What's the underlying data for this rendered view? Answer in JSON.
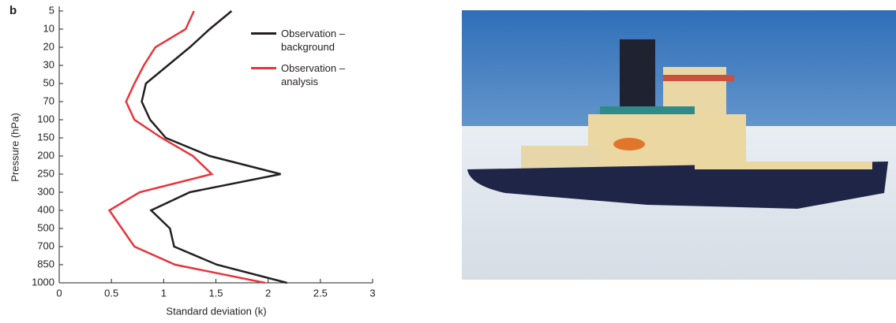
{
  "chart_data": {
    "type": "line",
    "panel_label": "b",
    "xlabel": "Standard deviation (k)",
    "ylabel": "Pressure (hPa)",
    "categories": [
      5,
      10,
      20,
      30,
      50,
      70,
      100,
      150,
      200,
      250,
      300,
      400,
      500,
      700,
      850,
      1000
    ],
    "series": [
      {
        "name": "Observation – background",
        "color": "#231f20",
        "values": [
          1.65,
          1.44,
          1.25,
          1.04,
          0.83,
          0.79,
          0.87,
          1.02,
          1.44,
          2.12,
          1.25,
          0.88,
          1.06,
          1.1,
          1.51,
          2.18
        ]
      },
      {
        "name": "Observation – analysis",
        "color": "#e8343b",
        "values": [
          1.29,
          1.21,
          0.92,
          0.81,
          0.72,
          0.64,
          0.72,
          0.98,
          1.28,
          1.46,
          0.77,
          0.48,
          0.6,
          0.72,
          1.11,
          1.97
        ]
      }
    ],
    "xlim": [
      0,
      3
    ],
    "xticks": [
      0,
      0.5,
      1,
      1.5,
      2,
      2.5,
      3
    ]
  }
}
